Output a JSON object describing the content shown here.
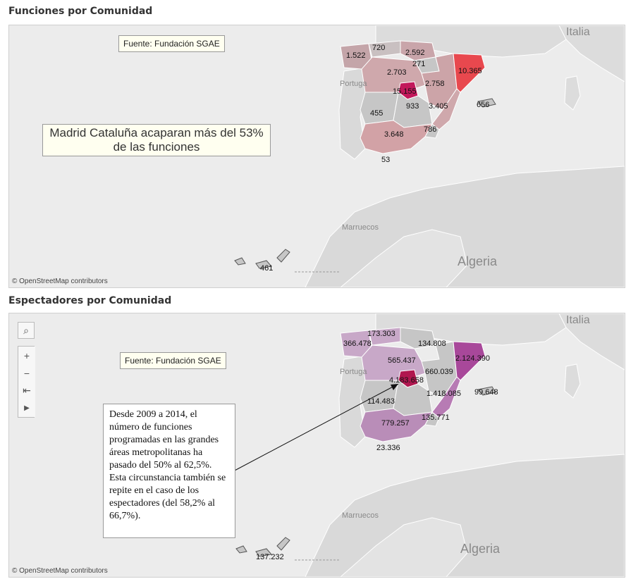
{
  "top": {
    "title": "Funciones por Comunidad",
    "source": "Fuente: Fundación SGAE",
    "headline": "Madrid Cataluña acaparan más del 53% de las funciones",
    "attribution": "© OpenStreetMap contributors",
    "places": {
      "italia": "Italia",
      "portugal": "Portuga",
      "marruecos": "Marruecos",
      "algeria": "Algeria"
    },
    "labels": {
      "galicia": "1.522",
      "asturias": "720",
      "pais_vasco": "2.592",
      "navarra": "271",
      "castilla_leon": "2.703",
      "cataluna": "10.365",
      "madrid": "15.155",
      "aragon": "2.758",
      "extremadura": "455",
      "castilla_la_mancha": "933",
      "valencia": "3.405",
      "baleares": "656",
      "murcia": "786",
      "andalucia": "3.648",
      "ceuta": "53",
      "canarias": "461"
    }
  },
  "bottom": {
    "title": "Espectadores por Comunidad",
    "source": "Fuente: Fundación SGAE",
    "note": "Desde 2009 a 2014, el número de funciones programadas en las grandes áreas metropolitanas ha pasado del 50% al 62,5%. Esta circunstancia también se repite en el caso de los espectadores (del 58,2% al 66,7%).",
    "attribution": "© OpenStreetMap contributors",
    "places": {
      "italia": "Italia",
      "portugal": "Portuga",
      "marruecos": "Marruecos",
      "algeria": "Algeria"
    },
    "toolbar": {
      "search": "⌕",
      "zoom_in": "+",
      "zoom_out": "−",
      "pin": "⇤",
      "play": "▶"
    },
    "labels": {
      "galicia": "366.478",
      "asturias": "173.303",
      "pais_vasco": "134.808",
      "castilla_leon": "565.437",
      "cataluna": "2.124.390",
      "aragon": "660.039",
      "madrid": "4.183.658",
      "extremadura": "114.483",
      "valencia": "1.418.085",
      "baleares": "99.648",
      "murcia": "135.771",
      "andalucia": "779.257",
      "ceuta": "23.336",
      "canarias": "137.232"
    }
  },
  "colors": {
    "sea": "#ececec",
    "land": "#d9d9d9",
    "border": "#ffffff",
    "region_gray": "#c6c6c6",
    "funciones_high": "#e8484e",
    "funciones_mid": "#cf9aa0",
    "funciones_top": "#c2185b",
    "espectadores_low": "#c8a8c8",
    "espectadores_mid": "#b77bb4",
    "espectadores_high": "#a8489a",
    "espectadores_top": "#b0174f"
  }
}
